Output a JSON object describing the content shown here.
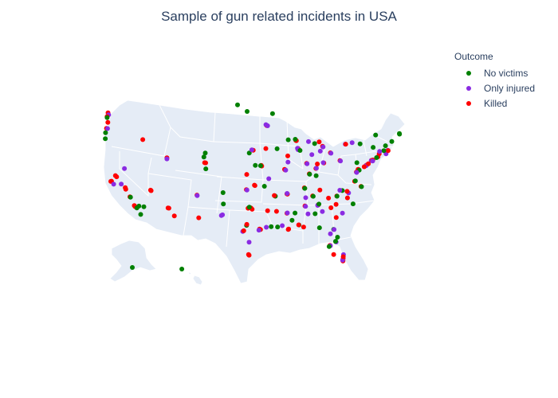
{
  "title": "Sample of gun related incidents in USA",
  "legend": {
    "title": "Outcome",
    "items": [
      {
        "label": "No victims",
        "color": "#008000"
      },
      {
        "label": "Only injured",
        "color": "#8a2be2"
      },
      {
        "label": "Killed",
        "color": "#ff0000"
      }
    ]
  },
  "colors": {
    "land": "#e5ecf6",
    "border": "#ffffff"
  },
  "map": {
    "projection": "albers-usa",
    "scope": "usa"
  },
  "incidents": [
    {
      "lon": -122.4,
      "lat": 47.8,
      "outcome": "Killed"
    },
    {
      "lon": -122.3,
      "lat": 47.5,
      "outcome": "Only injured"
    },
    {
      "lon": -122.6,
      "lat": 47.25,
      "outcome": "Killed"
    },
    {
      "lon": -122.5,
      "lat": 46.4,
      "outcome": "Killed"
    },
    {
      "lon": -122.8,
      "lat": 45.55,
      "outcome": "Killed"
    },
    {
      "lon": -122.6,
      "lat": 45.5,
      "outcome": "Only injured"
    },
    {
      "lon": -123.0,
      "lat": 44.9,
      "outcome": "No victims"
    },
    {
      "lon": -123.1,
      "lat": 44.05,
      "outcome": "No victims"
    },
    {
      "lon": -122.6,
      "lat": 47.1,
      "outcome": "No victims"
    },
    {
      "lon": -116.2,
      "lat": 43.6,
      "outcome": "Killed"
    },
    {
      "lon": -122.4,
      "lat": 37.77,
      "outcome": "Killed"
    },
    {
      "lon": -122.27,
      "lat": 37.8,
      "outcome": "Killed"
    },
    {
      "lon": -121.9,
      "lat": 37.35,
      "outcome": "Only injured"
    },
    {
      "lon": -121.5,
      "lat": 38.58,
      "outcome": "Killed"
    },
    {
      "lon": -121.3,
      "lat": 38.4,
      "outcome": "Killed"
    },
    {
      "lon": -120.5,
      "lat": 37.3,
      "outcome": "Only injured"
    },
    {
      "lon": -119.8,
      "lat": 36.74,
      "outcome": "Killed"
    },
    {
      "lon": -119.7,
      "lat": 36.5,
      "outcome": "Killed"
    },
    {
      "lon": -119.0,
      "lat": 35.37,
      "outcome": "Killed"
    },
    {
      "lon": -118.9,
      "lat": 35.3,
      "outcome": "No victims"
    },
    {
      "lon": -118.25,
      "lat": 34.05,
      "outcome": "Killed"
    },
    {
      "lon": -118.1,
      "lat": 33.9,
      "outcome": "Killed"
    },
    {
      "lon": -117.8,
      "lat": 33.7,
      "outcome": "No victims"
    },
    {
      "lon": -117.4,
      "lat": 33.95,
      "outcome": "No victims"
    },
    {
      "lon": -117.15,
      "lat": 32.72,
      "outcome": "No victims"
    },
    {
      "lon": -116.5,
      "lat": 33.8,
      "outcome": "No victims"
    },
    {
      "lon": -119.8,
      "lat": 39.53,
      "outcome": "Only injured"
    },
    {
      "lon": -115.14,
      "lat": 36.17,
      "outcome": "Killed"
    },
    {
      "lon": -115.05,
      "lat": 36.1,
      "outcome": "Killed"
    },
    {
      "lon": -112.07,
      "lat": 33.45,
      "outcome": "Killed"
    },
    {
      "lon": -111.9,
      "lat": 33.4,
      "outcome": "Killed"
    },
    {
      "lon": -110.97,
      "lat": 32.22,
      "outcome": "Killed"
    },
    {
      "lon": -111.89,
      "lat": 40.76,
      "outcome": "Killed"
    },
    {
      "lon": -111.9,
      "lat": 40.6,
      "outcome": "Only injured"
    },
    {
      "lon": -104.99,
      "lat": 39.74,
      "outcome": "Killed"
    },
    {
      "lon": -104.8,
      "lat": 39.7,
      "outcome": "Killed"
    },
    {
      "lon": -104.82,
      "lat": 38.83,
      "outcome": "No victims"
    },
    {
      "lon": -105.08,
      "lat": 40.58,
      "outcome": "No victims"
    },
    {
      "lon": -104.8,
      "lat": 41.14,
      "outcome": "No victims"
    },
    {
      "lon": -106.65,
      "lat": 35.08,
      "outcome": "Killed"
    },
    {
      "lon": -106.6,
      "lat": 35.0,
      "outcome": "Only injured"
    },
    {
      "lon": -106.49,
      "lat": 31.76,
      "outcome": "Killed"
    },
    {
      "lon": -101.85,
      "lat": 33.58,
      "outcome": "No victims"
    },
    {
      "lon": -101.83,
      "lat": 35.22,
      "outcome": "No victims"
    },
    {
      "lon": -102.1,
      "lat": 31.99,
      "outcome": "Only injured"
    },
    {
      "lon": -102.3,
      "lat": 31.9,
      "outcome": "Only injured"
    },
    {
      "lon": -97.33,
      "lat": 37.69,
      "outcome": "Killed"
    },
    {
      "lon": -97.5,
      "lat": 35.47,
      "outcome": "Killed"
    },
    {
      "lon": -97.4,
      "lat": 35.4,
      "outcome": "Only injured"
    },
    {
      "lon": -95.99,
      "lat": 36.15,
      "outcome": "Killed"
    },
    {
      "lon": -95.9,
      "lat": 36.1,
      "outcome": "Killed"
    },
    {
      "lon": -96.8,
      "lat": 32.78,
      "outcome": "Killed"
    },
    {
      "lon": -97.33,
      "lat": 32.75,
      "outcome": "Killed"
    },
    {
      "lon": -96.6,
      "lat": 32.6,
      "outcome": "Killed"
    },
    {
      "lon": -97.1,
      "lat": 32.9,
      "outcome": "No victims"
    },
    {
      "lon": -97.74,
      "lat": 30.27,
      "outcome": "No victims"
    },
    {
      "lon": -97.7,
      "lat": 30.4,
      "outcome": "Killed"
    },
    {
      "lon": -98.49,
      "lat": 29.42,
      "outcome": "Only injured"
    },
    {
      "lon": -98.3,
      "lat": 29.5,
      "outcome": "Killed"
    },
    {
      "lon": -95.37,
      "lat": 29.76,
      "outcome": "Killed"
    },
    {
      "lon": -95.2,
      "lat": 29.7,
      "outcome": "Killed"
    },
    {
      "lon": -95.5,
      "lat": 29.6,
      "outcome": "Only injured"
    },
    {
      "lon": -94.1,
      "lat": 30.08,
      "outcome": "Only injured"
    },
    {
      "lon": -97.4,
      "lat": 27.8,
      "outcome": "Only injured"
    },
    {
      "lon": -97.5,
      "lat": 25.9,
      "outcome": "Killed"
    },
    {
      "lon": -97.6,
      "lat": 26.0,
      "outcome": "Killed"
    },
    {
      "lon": -93.75,
      "lat": 32.52,
      "outcome": "Killed"
    },
    {
      "lon": -92.1,
      "lat": 32.5,
      "outcome": "Killed"
    },
    {
      "lon": -91.15,
      "lat": 30.45,
      "outcome": "Only injured"
    },
    {
      "lon": -90.07,
      "lat": 29.95,
      "outcome": "Killed"
    },
    {
      "lon": -90.0,
      "lat": 30.0,
      "outcome": "Killed"
    },
    {
      "lon": -92.02,
      "lat": 30.22,
      "outcome": "No victims"
    },
    {
      "lon": -93.2,
      "lat": 30.22,
      "outcome": "No victims"
    },
    {
      "lon": -96.7,
      "lat": 40.81,
      "outcome": "No victims"
    },
    {
      "lon": -95.94,
      "lat": 41.26,
      "outcome": "Killed"
    },
    {
      "lon": -96.2,
      "lat": 41.3,
      "outcome": "Only injured"
    },
    {
      "lon": -94.58,
      "lat": 39.1,
      "outcome": "Killed"
    },
    {
      "lon": -94.5,
      "lat": 39.0,
      "outcome": "Killed"
    },
    {
      "lon": -94.7,
      "lat": 39.05,
      "outcome": "No victims"
    },
    {
      "lon": -95.68,
      "lat": 39.05,
      "outcome": "No victims"
    },
    {
      "lon": -93.29,
      "lat": 37.21,
      "outcome": "Only injured"
    },
    {
      "lon": -90.2,
      "lat": 38.63,
      "outcome": "Killed"
    },
    {
      "lon": -90.3,
      "lat": 38.7,
      "outcome": "Killed"
    },
    {
      "lon": -90.1,
      "lat": 38.6,
      "outcome": "Only injured"
    },
    {
      "lon": -93.6,
      "lat": 41.6,
      "outcome": "Killed"
    },
    {
      "lon": -91.53,
      "lat": 41.66,
      "outcome": "No victims"
    },
    {
      "lon": -93.27,
      "lat": 44.98,
      "outcome": "Killed"
    },
    {
      "lon": -93.1,
      "lat": 44.95,
      "outcome": "Only injured"
    },
    {
      "lon": -93.4,
      "lat": 45.1,
      "outcome": "Only injured"
    },
    {
      "lon": -92.1,
      "lat": 46.78,
      "outcome": "No victims"
    },
    {
      "lon": -96.79,
      "lat": 46.88,
      "outcome": "No victims"
    },
    {
      "lon": -98.5,
      "lat": 47.9,
      "outcome": "No victims"
    },
    {
      "lon": -88.0,
      "lat": 43.04,
      "outcome": "Killed"
    },
    {
      "lon": -87.9,
      "lat": 43.0,
      "outcome": "Killed"
    },
    {
      "lon": -89.4,
      "lat": 43.07,
      "outcome": "No victims"
    },
    {
      "lon": -88.1,
      "lat": 43.2,
      "outcome": "No victims"
    },
    {
      "lon": -87.63,
      "lat": 41.88,
      "outcome": "Killed"
    },
    {
      "lon": -87.7,
      "lat": 41.8,
      "outcome": "Killed"
    },
    {
      "lon": -87.6,
      "lat": 41.75,
      "outcome": "Killed"
    },
    {
      "lon": -87.75,
      "lat": 41.9,
      "outcome": "Only injured"
    },
    {
      "lon": -87.65,
      "lat": 41.7,
      "outcome": "Only injured"
    },
    {
      "lon": -89.6,
      "lat": 39.8,
      "outcome": "Only injured"
    },
    {
      "lon": -89.6,
      "lat": 40.7,
      "outcome": "Killed"
    },
    {
      "lon": -86.16,
      "lat": 39.77,
      "outcome": "Killed"
    },
    {
      "lon": -86.1,
      "lat": 39.7,
      "outcome": "Only injured"
    },
    {
      "lon": -87.3,
      "lat": 41.6,
      "outcome": "No victims"
    },
    {
      "lon": -85.14,
      "lat": 41.08,
      "outcome": "Only injured"
    },
    {
      "lon": -83.05,
      "lat": 42.33,
      "outcome": "Killed"
    },
    {
      "lon": -83.1,
      "lat": 42.4,
      "outcome": "Killed"
    },
    {
      "lon": -83.0,
      "lat": 42.3,
      "outcome": "Only injured"
    },
    {
      "lon": -85.67,
      "lat": 42.96,
      "outcome": "Only injured"
    },
    {
      "lon": -83.69,
      "lat": 43.01,
      "outcome": "Killed"
    },
    {
      "lon": -84.55,
      "lat": 42.73,
      "outcome": "No victims"
    },
    {
      "lon": -84.5,
      "lat": 39.1,
      "outcome": "Killed"
    },
    {
      "lon": -84.4,
      "lat": 39.15,
      "outcome": "Only injured"
    },
    {
      "lon": -83.0,
      "lat": 39.96,
      "outcome": "Killed"
    },
    {
      "lon": -83.1,
      "lat": 40.0,
      "outcome": "Only injured"
    },
    {
      "lon": -81.69,
      "lat": 41.5,
      "outcome": "Killed"
    },
    {
      "lon": -81.6,
      "lat": 41.45,
      "outcome": "Only injured"
    },
    {
      "lon": -84.19,
      "lat": 39.76,
      "outcome": "Killed"
    },
    {
      "lon": -83.55,
      "lat": 41.66,
      "outcome": "Only injured"
    },
    {
      "lon": -85.76,
      "lat": 38.25,
      "outcome": "Killed"
    },
    {
      "lon": -85.7,
      "lat": 38.2,
      "outcome": "No victims"
    },
    {
      "lon": -84.5,
      "lat": 38.04,
      "outcome": "No victims"
    },
    {
      "lon": -86.78,
      "lat": 36.16,
      "outcome": "Killed"
    },
    {
      "lon": -86.7,
      "lat": 36.1,
      "outcome": "No victims"
    },
    {
      "lon": -90.05,
      "lat": 35.15,
      "outcome": "Killed"
    },
    {
      "lon": -89.95,
      "lat": 35.1,
      "outcome": "Killed"
    },
    {
      "lon": -90.0,
      "lat": 35.2,
      "outcome": "Only injured"
    },
    {
      "lon": -83.92,
      "lat": 35.96,
      "outcome": "Killed"
    },
    {
      "lon": -85.31,
      "lat": 35.05,
      "outcome": "Killed"
    },
    {
      "lon": -85.2,
      "lat": 35.0,
      "outcome": "No victims"
    },
    {
      "lon": -92.29,
      "lat": 34.75,
      "outcome": "No victims"
    },
    {
      "lon": -92.2,
      "lat": 34.7,
      "outcome": "No victims"
    },
    {
      "lon": -92.4,
      "lat": 34.8,
      "outcome": "Killed"
    },
    {
      "lon": -94.15,
      "lat": 36.07,
      "outcome": "No victims"
    },
    {
      "lon": -90.18,
      "lat": 32.3,
      "outcome": "Killed"
    },
    {
      "lon": -90.1,
      "lat": 32.35,
      "outcome": "Only injured"
    },
    {
      "lon": -88.7,
      "lat": 32.4,
      "outcome": "No victims"
    },
    {
      "lon": -89.3,
      "lat": 31.3,
      "outcome": "No victims"
    },
    {
      "lon": -86.8,
      "lat": 33.52,
      "outcome": "Killed"
    },
    {
      "lon": -86.7,
      "lat": 33.45,
      "outcome": "Only injured"
    },
    {
      "lon": -86.3,
      "lat": 32.37,
      "outcome": "Only injured"
    },
    {
      "lon": -88.04,
      "lat": 30.69,
      "outcome": "No victims"
    },
    {
      "lon": -88.1,
      "lat": 30.7,
      "outcome": "Killed"
    },
    {
      "lon": -86.6,
      "lat": 34.73,
      "outcome": "Only injured"
    },
    {
      "lon": -84.39,
      "lat": 33.75,
      "outcome": "Killed"
    },
    {
      "lon": -84.3,
      "lat": 33.8,
      "outcome": "Killed"
    },
    {
      "lon": -84.45,
      "lat": 33.7,
      "outcome": "Only injured"
    },
    {
      "lon": -84.2,
      "lat": 33.9,
      "outcome": "No victims"
    },
    {
      "lon": -81.1,
      "lat": 32.08,
      "outcome": "Killed"
    },
    {
      "lon": -83.63,
      "lat": 32.84,
      "outcome": "Only injured"
    },
    {
      "lon": -82.0,
      "lat": 33.47,
      "outcome": "Killed"
    },
    {
      "lon": -84.98,
      "lat": 32.46,
      "outcome": "No victims"
    },
    {
      "lon": -84.28,
      "lat": 30.44,
      "outcome": "No victims"
    },
    {
      "lon": -87.2,
      "lat": 30.42,
      "outcome": "Killed"
    },
    {
      "lon": -81.66,
      "lat": 30.33,
      "outcome": "No victims"
    },
    {
      "lon": -81.6,
      "lat": 30.3,
      "outcome": "Only injured"
    },
    {
      "lon": -81.38,
      "lat": 28.54,
      "outcome": "No victims"
    },
    {
      "lon": -81.3,
      "lat": 28.5,
      "outcome": "Only injured"
    },
    {
      "lon": -81.4,
      "lat": 28.6,
      "outcome": "No victims"
    },
    {
      "lon": -82.46,
      "lat": 27.95,
      "outcome": "Killed"
    },
    {
      "lon": -82.4,
      "lat": 27.9,
      "outcome": "Only injured"
    },
    {
      "lon": -82.64,
      "lat": 27.77,
      "outcome": "No victims"
    },
    {
      "lon": -81.85,
      "lat": 26.64,
      "outcome": "Killed"
    },
    {
      "lon": -80.19,
      "lat": 25.77,
      "outcome": "Killed"
    },
    {
      "lon": -80.2,
      "lat": 25.8,
      "outcome": "Killed"
    },
    {
      "lon": -80.14,
      "lat": 26.12,
      "outcome": "Killed"
    },
    {
      "lon": -80.25,
      "lat": 25.9,
      "outcome": "Only injured"
    },
    {
      "lon": -80.05,
      "lat": 26.7,
      "outcome": "Only injured"
    },
    {
      "lon": -80.1,
      "lat": 26.4,
      "outcome": "Killed"
    },
    {
      "lon": -82.3,
      "lat": 29.65,
      "outcome": "Only injured"
    },
    {
      "lon": -81.02,
      "lat": 29.21,
      "outcome": "No victims"
    },
    {
      "lon": -80.84,
      "lat": 35.23,
      "outcome": "Killed"
    },
    {
      "lon": -80.8,
      "lat": 35.2,
      "outcome": "No victims"
    },
    {
      "lon": -78.64,
      "lat": 35.78,
      "outcome": "Only injured"
    },
    {
      "lon": -78.9,
      "lat": 36.0,
      "outcome": "Killed"
    },
    {
      "lon": -79.79,
      "lat": 36.07,
      "outcome": "No victims"
    },
    {
      "lon": -80.24,
      "lat": 36.1,
      "outcome": "Only injured"
    },
    {
      "lon": -78.88,
      "lat": 35.05,
      "outcome": "Killed"
    },
    {
      "lon": -77.9,
      "lat": 34.22,
      "outcome": "No victims"
    },
    {
      "lon": -81.03,
      "lat": 34.0,
      "outcome": "Killed"
    },
    {
      "lon": -79.93,
      "lat": 32.78,
      "outcome": "Only injured"
    },
    {
      "lon": -82.39,
      "lat": 34.85,
      "outcome": "Killed"
    },
    {
      "lon": -77.43,
      "lat": 37.54,
      "outcome": "Killed"
    },
    {
      "lon": -76.29,
      "lat": 36.85,
      "outcome": "Killed"
    },
    {
      "lon": -76.2,
      "lat": 36.8,
      "outcome": "No victims"
    },
    {
      "lon": -77.3,
      "lat": 37.6,
      "outcome": "No victims"
    },
    {
      "lon": -76.61,
      "lat": 39.29,
      "outcome": "Killed"
    },
    {
      "lon": -76.7,
      "lat": 39.3,
      "outcome": "Killed"
    },
    {
      "lon": -76.5,
      "lat": 39.2,
      "outcome": "No victims"
    },
    {
      "lon": -77.04,
      "lat": 38.91,
      "outcome": "Killed"
    },
    {
      "lon": -77.0,
      "lat": 38.85,
      "outcome": "Only injured"
    },
    {
      "lon": -75.16,
      "lat": 39.95,
      "outcome": "Killed"
    },
    {
      "lon": -75.1,
      "lat": 40.0,
      "outcome": "Killed"
    },
    {
      "lon": -75.2,
      "lat": 39.9,
      "outcome": "Only injured"
    },
    {
      "lon": -79.99,
      "lat": 40.44,
      "outcome": "Killed"
    },
    {
      "lon": -79.9,
      "lat": 40.4,
      "outcome": "Only injured"
    },
    {
      "lon": -76.88,
      "lat": 40.27,
      "outcome": "No victims"
    },
    {
      "lon": -75.55,
      "lat": 39.74,
      "outcome": "Killed"
    },
    {
      "lon": -74.17,
      "lat": 40.73,
      "outcome": "Killed"
    },
    {
      "lon": -74.2,
      "lat": 40.7,
      "outcome": "Only injured"
    },
    {
      "lon": -74.76,
      "lat": 40.22,
      "outcome": "Killed"
    },
    {
      "lon": -74.0,
      "lat": 40.71,
      "outcome": "Killed"
    },
    {
      "lon": -73.9,
      "lat": 40.8,
      "outcome": "Killed"
    },
    {
      "lon": -73.95,
      "lat": 40.65,
      "outcome": "Only injured"
    },
    {
      "lon": -78.88,
      "lat": 42.89,
      "outcome": "Only injured"
    },
    {
      "lon": -78.8,
      "lat": 42.9,
      "outcome": "Killed"
    },
    {
      "lon": -77.61,
      "lat": 43.16,
      "outcome": "Only injured"
    },
    {
      "lon": -76.15,
      "lat": 43.05,
      "outcome": "No victims"
    },
    {
      "lon": -73.76,
      "lat": 42.65,
      "outcome": "No victims"
    },
    {
      "lon": -72.93,
      "lat": 41.31,
      "outcome": "Killed"
    },
    {
      "lon": -72.68,
      "lat": 41.76,
      "outcome": "Killed"
    },
    {
      "lon": -73.2,
      "lat": 41.18,
      "outcome": "No victims"
    },
    {
      "lon": -71.41,
      "lat": 41.82,
      "outcome": "Only injured"
    },
    {
      "lon": -71.06,
      "lat": 42.36,
      "outcome": "Only injured"
    },
    {
      "lon": -71.0,
      "lat": 42.3,
      "outcome": "Killed"
    },
    {
      "lon": -71.8,
      "lat": 42.26,
      "outcome": "No victims"
    },
    {
      "lon": -72.59,
      "lat": 42.1,
      "outcome": "Only injured"
    },
    {
      "lon": -71.46,
      "lat": 42.99,
      "outcome": "No victims"
    },
    {
      "lon": -70.26,
      "lat": 43.66,
      "outcome": "No victims"
    },
    {
      "lon": -68.77,
      "lat": 44.8,
      "outcome": "No victims"
    },
    {
      "lon": -68.8,
      "lat": 44.9,
      "outcome": "No victims"
    },
    {
      "lon": -73.21,
      "lat": 44.48,
      "outcome": "No victims"
    },
    {
      "lon": -149.9,
      "lat": 61.22,
      "outcome": "No victims"
    },
    {
      "lon": -157.86,
      "lat": 21.31,
      "outcome": "No victims"
    }
  ]
}
